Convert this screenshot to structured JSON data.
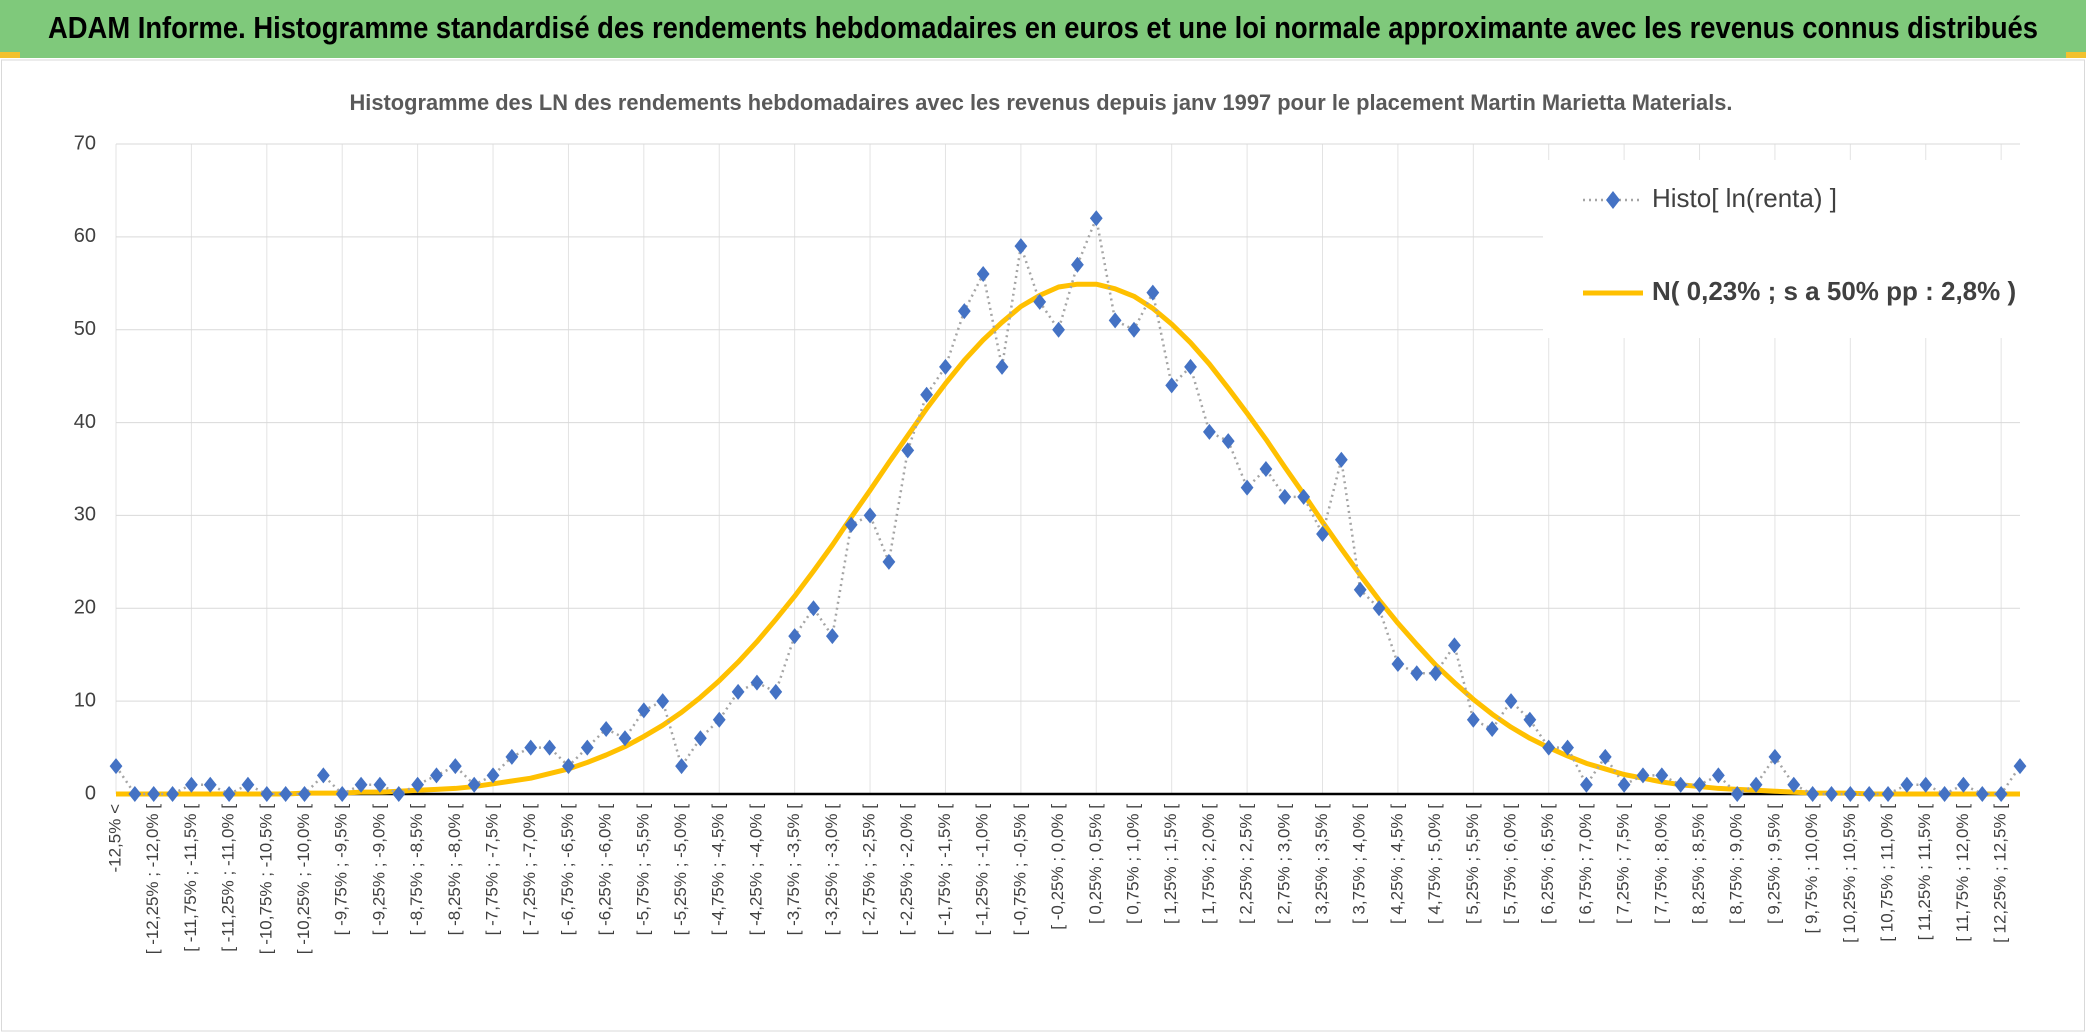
{
  "header": {
    "title": "ADAM Informe. Histogramme standardisé des rendements hebdomadaires en euros et une loi normale approximante avec les revenus connus distribués"
  },
  "chart_data": {
    "type": "line",
    "title": "Histogramme des LN des rendements hebdomadaires avec les revenus depuis janv 1997 pour le placement Martin  Marietta Materials.",
    "categories": [
      "-12,5% <",
      null,
      "[ -12,25% ; -12,0% [",
      null,
      "[ -11,75% ; -11,5% [",
      null,
      "[ -11,25% ; -11,0% [",
      null,
      "[ -10,75% ; -10,5% [",
      null,
      "[ -10,25% ; -10,0% [",
      null,
      "[ -9,75% ; -9,5% [",
      null,
      "[ -9,25% ; -9,0% [",
      null,
      "[ -8,75% ; -8,5% [",
      null,
      "[ -8,25% ; -8,0% [",
      null,
      "[ -7,75% ; -7,5% [",
      null,
      "[ -7,25% ; -7,0% [",
      null,
      "[ -6,75% ; -6,5% [",
      null,
      "[ -6,25% ; -6,0% [",
      null,
      "[ -5,75% ; -5,5% [",
      null,
      "[ -5,25% ; -5,0% [",
      null,
      "[ -4,75% ; -4,5% [",
      null,
      "[ -4,25% ; -4,0% [",
      null,
      "[ -3,75% ; -3,5% [",
      null,
      "[ -3,25% ; -3,0% [",
      null,
      "[ -2,75% ; -2,5% [",
      null,
      "[ -2,25% ; -2,0% [",
      null,
      "[ -1,75% ; -1,5% [",
      null,
      "[ -1,25% ; -1,0% [",
      null,
      "[ -0,75% ; -0,5% [",
      null,
      "[ -0,25% ; 0,0% [",
      null,
      "[ 0,25% ; 0,5% [",
      null,
      "[ 0,75% ; 1,0% [",
      null,
      "[ 1,25% ; 1,5% [",
      null,
      "[ 1,75% ; 2,0% [",
      null,
      "[ 2,25% ; 2,5% [",
      null,
      "[ 2,75% ; 3,0% [",
      null,
      "[ 3,25% ; 3,5% [",
      null,
      "[ 3,75% ; 4,0% [",
      null,
      "[ 4,25% ; 4,5% [",
      null,
      "[ 4,75% ; 5,0% [",
      null,
      "[ 5,25% ; 5,5% [",
      null,
      "[ 5,75% ; 6,0% [",
      null,
      "[ 6,25% ; 6,5% [",
      null,
      "[ 6,75% ; 7,0% [",
      null,
      "[ 7,25% ; 7,5% [",
      null,
      "[ 7,75% ; 8,0% [",
      null,
      "[ 8,25% ; 8,5% [",
      null,
      "[ 8,75% ; 9,0% [",
      null,
      "[ 9,25% ; 9,5% [",
      null,
      "[ 9,75% ; 10,0% [",
      null,
      "[ 10,25% ; 10,5% [",
      null,
      "[ 10,75% ; 11,0% [",
      null,
      "[ 11,25% ; 11,5% [",
      null,
      "[ 11,75% ; 12,0% [",
      null,
      "[ 12,25% ; 12,5% [",
      null
    ],
    "series": [
      {
        "name": "Histo[ ln(renta) ]",
        "color": "#4472c4",
        "line_color": "#a5a5a5",
        "values": [
          3,
          0,
          0,
          0,
          1,
          1,
          0,
          1,
          0,
          0,
          0,
          2,
          0,
          1,
          1,
          0,
          1,
          2,
          3,
          1,
          2,
          4,
          5,
          5,
          3,
          5,
          7,
          6,
          9,
          10,
          3,
          6,
          8,
          11,
          12,
          11,
          17,
          20,
          17,
          29,
          30,
          25,
          37,
          43,
          46,
          52,
          56,
          46,
          59,
          53,
          50,
          57,
          62,
          51,
          50,
          54,
          44,
          46,
          39,
          38,
          33,
          35,
          32,
          32,
          28,
          36,
          22,
          20,
          14,
          13,
          13,
          16,
          8,
          7,
          10,
          8,
          5,
          5,
          1,
          4,
          1,
          2,
          2,
          1,
          1,
          2,
          0,
          1,
          4,
          1,
          0,
          0,
          0,
          0,
          0,
          1,
          1,
          0,
          1,
          0,
          0,
          3
        ]
      },
      {
        "name": "N( 0,23% ; s a 50% pp : 2,8% )",
        "color": "#ffc000",
        "values": [
          0,
          0,
          0,
          0,
          0,
          0,
          0,
          0,
          0,
          0,
          0.1,
          0.1,
          0.1,
          0.2,
          0.2,
          0.3,
          0.4,
          0.5,
          0.6,
          0.8,
          1.1,
          1.4,
          1.7,
          2.2,
          2.7,
          3.4,
          4.2,
          5.1,
          6.2,
          7.4,
          8.8,
          10.4,
          12.2,
          14.2,
          16.4,
          18.8,
          21.3,
          24,
          26.8,
          29.8,
          32.7,
          35.7,
          38.6,
          41.5,
          44.2,
          46.7,
          48.9,
          50.8,
          52.5,
          53.7,
          54.6,
          54.9,
          54.9,
          54.4,
          53.6,
          52.3,
          50.6,
          48.6,
          46.3,
          43.7,
          41,
          38.2,
          35.2,
          32.3,
          29.3,
          26.4,
          23.6,
          20.9,
          18.4,
          16.1,
          13.9,
          12,
          10.2,
          8.6,
          7.2,
          6,
          5,
          4.1,
          3.3,
          2.7,
          2.1,
          1.7,
          1.3,
          1,
          0.8,
          0.6,
          0.5,
          0.4,
          0.3,
          0.2,
          0.1,
          0.1,
          0.1,
          0,
          0,
          0,
          0,
          0,
          0,
          0,
          0,
          0
        ]
      }
    ],
    "ylim": [
      0,
      70
    ],
    "yticks": [
      0,
      10,
      20,
      30,
      40,
      50,
      60,
      70
    ],
    "grid": true,
    "legend": "upper right"
  }
}
